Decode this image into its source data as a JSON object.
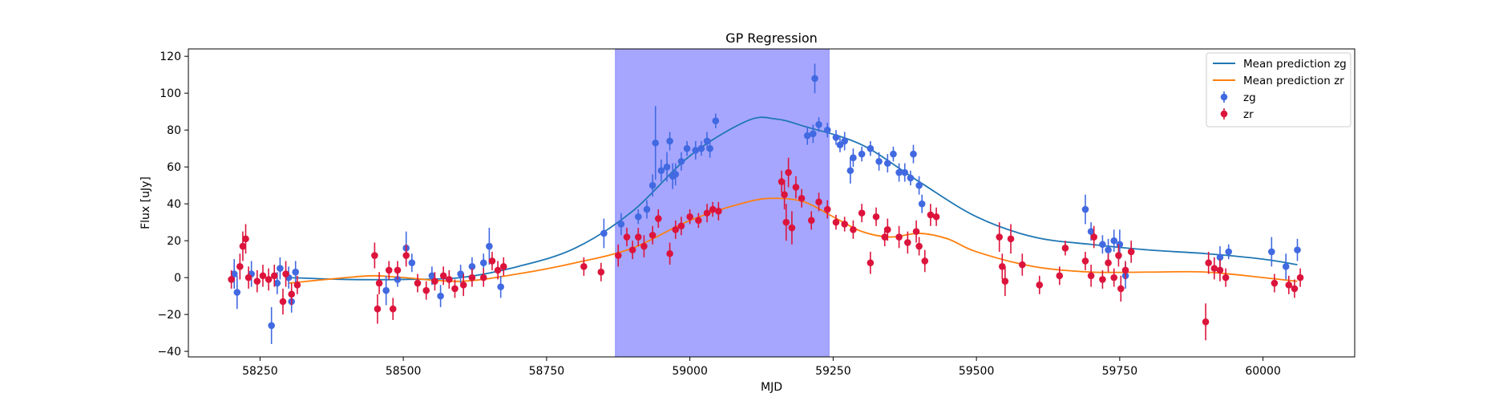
{
  "chart_data": {
    "type": "scatter",
    "title": "GP Regression",
    "xlabel": "MJD",
    "ylabel": "Flux [uJy]",
    "xlim": [
      58125,
      60160
    ],
    "ylim": [
      -43,
      124
    ],
    "xticks": [
      58250,
      58500,
      58750,
      59000,
      59250,
      59500,
      59750,
      60000
    ],
    "yticks": [
      -40,
      -20,
      0,
      20,
      40,
      60,
      80,
      100,
      120
    ],
    "grid": false,
    "legend_position": "top-right",
    "shaded_region": {
      "x0": 58870,
      "x1": 59243,
      "color": "#a6a6ff"
    },
    "colors": {
      "zg_line": "#1f77b4",
      "zr_line": "#ff7f0e",
      "zg_points": "#4169e1",
      "zr_points": "#dc143c"
    },
    "legend": [
      {
        "label": "Mean prediction zg",
        "kind": "line",
        "color": "#1f77b4"
      },
      {
        "label": "Mean prediction zr",
        "kind": "line",
        "color": "#ff7f0e"
      },
      {
        "label": "zg",
        "kind": "errorbar",
        "color": "#4169e1"
      },
      {
        "label": "zr",
        "kind": "errorbar",
        "color": "#dc143c"
      }
    ],
    "lines": [
      {
        "name": "Mean prediction zg",
        "color": "#1f77b4",
        "x": [
          58300,
          58400,
          58500,
          58600,
          58700,
          58800,
          58900,
          59000,
          59100,
          59150,
          59200,
          59300,
          59400,
          59500,
          59600,
          59700,
          59800,
          59900,
          60000,
          60060
        ],
        "y": [
          0,
          -1,
          -1,
          0,
          6,
          16,
          36,
          66,
          85,
          86,
          82,
          72,
          52,
          33,
          22,
          18,
          15,
          13,
          10,
          7
        ]
      },
      {
        "name": "Mean prediction zr",
        "color": "#ff7f0e",
        "x": [
          58300,
          58400,
          58450,
          58500,
          58600,
          58700,
          58800,
          58900,
          59000,
          59100,
          59150,
          59200,
          59250,
          59300,
          59350,
          59400,
          59450,
          59500,
          59600,
          59700,
          59800,
          59900,
          60000,
          60060
        ],
        "y": [
          -3,
          0,
          1,
          0,
          -2,
          2,
          8,
          16,
          31,
          41,
          43,
          41,
          33,
          25,
          22,
          24,
          21,
          14,
          6,
          3,
          3,
          3,
          0,
          -2
        ]
      }
    ],
    "series": [
      {
        "name": "zg",
        "color": "#4169e1",
        "points": [
          [
            58205,
            2,
            8
          ],
          [
            58210,
            -8,
            9
          ],
          [
            58235,
            2,
            7
          ],
          [
            58270,
            -26,
            10
          ],
          [
            58280,
            -3,
            6
          ],
          [
            58285,
            5,
            6
          ],
          [
            58300,
            0,
            6
          ],
          [
            58305,
            -13,
            6
          ],
          [
            58312,
            3,
            6
          ],
          [
            58470,
            -7,
            8
          ],
          [
            58490,
            -1,
            4
          ],
          [
            58505,
            16,
            9
          ],
          [
            58515,
            8,
            5
          ],
          [
            58550,
            1,
            5
          ],
          [
            58565,
            -10,
            6
          ],
          [
            58600,
            2,
            5
          ],
          [
            58620,
            6,
            5
          ],
          [
            58640,
            8,
            5
          ],
          [
            58650,
            17,
            10
          ],
          [
            58670,
            -5,
            6
          ],
          [
            58850,
            24,
            8
          ],
          [
            58880,
            29,
            6
          ],
          [
            58910,
            33,
            4
          ],
          [
            58925,
            37,
            5
          ],
          [
            58935,
            50,
            6
          ],
          [
            58940,
            73,
            20
          ],
          [
            58950,
            58,
            6
          ],
          [
            58960,
            60,
            8
          ],
          [
            58965,
            74,
            5
          ],
          [
            58970,
            55,
            7
          ],
          [
            58975,
            56,
            6
          ],
          [
            58985,
            63,
            5
          ],
          [
            58995,
            70,
            4
          ],
          [
            59010,
            69,
            5
          ],
          [
            59020,
            70,
            4
          ],
          [
            59030,
            74,
            5
          ],
          [
            59035,
            70,
            5
          ],
          [
            59045,
            85,
            4
          ],
          [
            59205,
            77,
            5
          ],
          [
            59215,
            78,
            5
          ],
          [
            59218,
            108,
            8
          ],
          [
            59225,
            83,
            4
          ],
          [
            59240,
            80,
            4
          ],
          [
            59255,
            76,
            4
          ],
          [
            59262,
            72,
            4
          ],
          [
            59270,
            74,
            5
          ],
          [
            59280,
            58,
            7
          ],
          [
            59285,
            65,
            5
          ],
          [
            59300,
            67,
            4
          ],
          [
            59315,
            70,
            4
          ],
          [
            59330,
            63,
            5
          ],
          [
            59345,
            62,
            5
          ],
          [
            59355,
            67,
            4
          ],
          [
            59365,
            57,
            5
          ],
          [
            59375,
            57,
            5
          ],
          [
            59385,
            54,
            4
          ],
          [
            59390,
            67,
            5
          ],
          [
            59400,
            50,
            5
          ],
          [
            59405,
            40,
            5
          ],
          [
            59690,
            37,
            8
          ],
          [
            59700,
            25,
            5
          ],
          [
            59720,
            18,
            5
          ],
          [
            59730,
            15,
            6
          ],
          [
            59740,
            20,
            6
          ],
          [
            59750,
            18,
            8
          ],
          [
            59760,
            1,
            7
          ],
          [
            59925,
            11,
            6
          ],
          [
            59940,
            14,
            4
          ],
          [
            60015,
            14,
            8
          ],
          [
            60040,
            6,
            7
          ],
          [
            60060,
            15,
            6
          ]
        ]
      },
      {
        "name": "zr",
        "color": "#dc143c",
        "points": [
          [
            58200,
            -1,
            5
          ],
          [
            58215,
            6,
            7
          ],
          [
            58220,
            17,
            8
          ],
          [
            58225,
            21,
            8
          ],
          [
            58230,
            0,
            6
          ],
          [
            58245,
            -2,
            6
          ],
          [
            58255,
            1,
            6
          ],
          [
            58265,
            -1,
            6
          ],
          [
            58275,
            1,
            6
          ],
          [
            58290,
            -13,
            7
          ],
          [
            58295,
            2,
            7
          ],
          [
            58305,
            -9,
            6
          ],
          [
            58315,
            -4,
            5
          ],
          [
            58450,
            12,
            7
          ],
          [
            58455,
            -17,
            8
          ],
          [
            58458,
            -3,
            6
          ],
          [
            58475,
            4,
            5
          ],
          [
            58482,
            -17,
            6
          ],
          [
            58490,
            4,
            5
          ],
          [
            58505,
            12,
            6
          ],
          [
            58525,
            -3,
            5
          ],
          [
            58540,
            -7,
            5
          ],
          [
            58555,
            -2,
            5
          ],
          [
            58570,
            1,
            5
          ],
          [
            58580,
            -1,
            5
          ],
          [
            58590,
            -6,
            5
          ],
          [
            58605,
            -4,
            6
          ],
          [
            58620,
            0,
            5
          ],
          [
            58640,
            0,
            5
          ],
          [
            58655,
            9,
            5
          ],
          [
            58665,
            4,
            5
          ],
          [
            58675,
            6,
            5
          ],
          [
            58815,
            6,
            5
          ],
          [
            58845,
            3,
            5
          ],
          [
            58875,
            12,
            6
          ],
          [
            58890,
            22,
            5
          ],
          [
            58900,
            15,
            5
          ],
          [
            58910,
            22,
            5
          ],
          [
            58920,
            17,
            6
          ],
          [
            58935,
            23,
            5
          ],
          [
            58945,
            32,
            5
          ],
          [
            58965,
            13,
            6
          ],
          [
            58975,
            26,
            5
          ],
          [
            58985,
            28,
            5
          ],
          [
            59000,
            33,
            4
          ],
          [
            59015,
            31,
            4
          ],
          [
            59030,
            35,
            5
          ],
          [
            59040,
            37,
            4
          ],
          [
            59050,
            36,
            5
          ],
          [
            59160,
            52,
            6
          ],
          [
            59165,
            45,
            8
          ],
          [
            59168,
            30,
            10
          ],
          [
            59172,
            57,
            8
          ],
          [
            59178,
            27,
            9
          ],
          [
            59185,
            49,
            6
          ],
          [
            59195,
            43,
            5
          ],
          [
            59212,
            31,
            5
          ],
          [
            59225,
            41,
            5
          ],
          [
            59240,
            37,
            5
          ],
          [
            59255,
            30,
            4
          ],
          [
            59270,
            29,
            4
          ],
          [
            59285,
            26,
            5
          ],
          [
            59300,
            35,
            5
          ],
          [
            59315,
            8,
            6
          ],
          [
            59325,
            33,
            5
          ],
          [
            59340,
            22,
            5
          ],
          [
            59345,
            26,
            6
          ],
          [
            59365,
            22,
            6
          ],
          [
            59380,
            19,
            6
          ],
          [
            59395,
            25,
            6
          ],
          [
            59400,
            17,
            5
          ],
          [
            59410,
            9,
            6
          ],
          [
            59420,
            34,
            6
          ],
          [
            59430,
            33,
            5
          ],
          [
            59540,
            22,
            8
          ],
          [
            59545,
            6,
            7
          ],
          [
            59550,
            -2,
            8
          ],
          [
            59560,
            21,
            8
          ],
          [
            59580,
            7,
            6
          ],
          [
            59610,
            -4,
            5
          ],
          [
            59645,
            1,
            5
          ],
          [
            59655,
            16,
            4
          ],
          [
            59690,
            9,
            5
          ],
          [
            59700,
            1,
            6
          ],
          [
            59705,
            22,
            6
          ],
          [
            59720,
            -1,
            5
          ],
          [
            59730,
            8,
            5
          ],
          [
            59740,
            0,
            5
          ],
          [
            59748,
            12,
            6
          ],
          [
            59752,
            -6,
            7
          ],
          [
            59760,
            4,
            5
          ],
          [
            59770,
            14,
            6
          ],
          [
            59900,
            -24,
            10
          ],
          [
            59905,
            8,
            6
          ],
          [
            59915,
            5,
            6
          ],
          [
            59925,
            4,
            6
          ],
          [
            59935,
            0,
            5
          ],
          [
            60020,
            -3,
            5
          ],
          [
            60045,
            -4,
            5
          ],
          [
            60055,
            -6,
            5
          ],
          [
            60065,
            0,
            5
          ]
        ]
      }
    ]
  }
}
